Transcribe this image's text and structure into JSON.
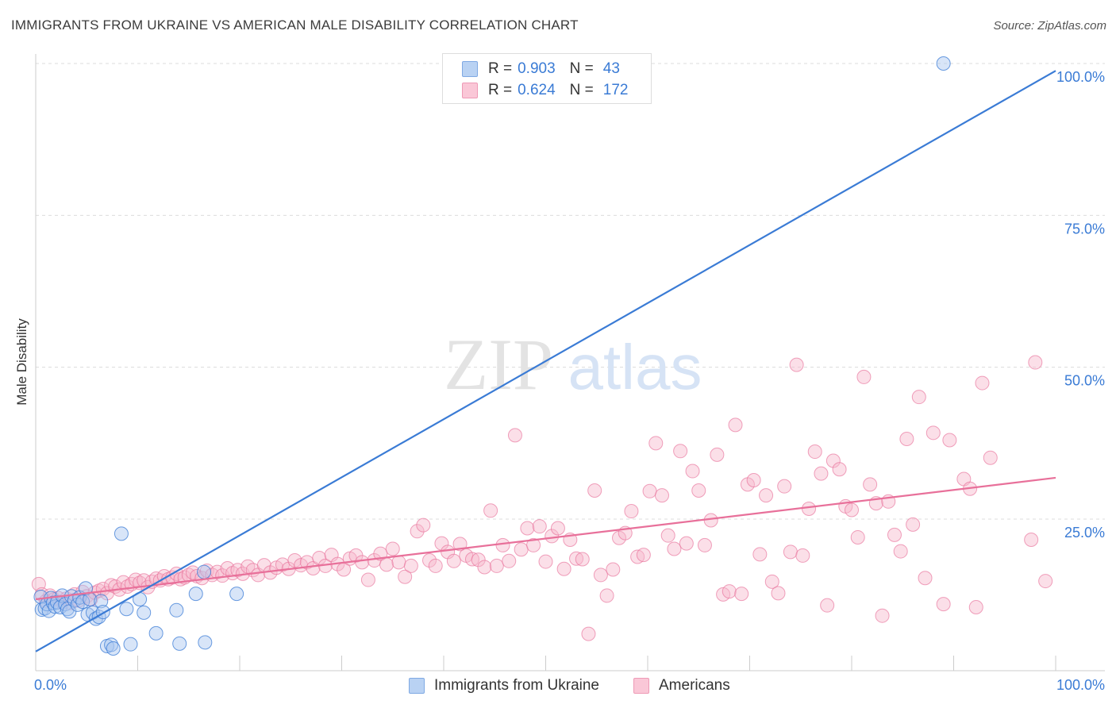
{
  "title": "IMMIGRANTS FROM UKRAINE VS AMERICAN MALE DISABILITY CORRELATION CHART",
  "source": "Source: ZipAtlas.com",
  "watermark": {
    "zip": "ZIP",
    "atlas": "atlas"
  },
  "colors": {
    "blue": "#3a7bd5",
    "blue_fill": "#a9c6f0",
    "pink": "#e8709a",
    "pink_fill": "#f7b9cd",
    "axis_text": "#3a7bd5",
    "grid": "#dcdcdc"
  },
  "legend": {
    "rows": [
      {
        "r_label": "R =",
        "r_value": "0.903",
        "n_label": "N =",
        "n_value": "43"
      },
      {
        "r_label": "R =",
        "r_value": "0.624",
        "n_label": "N =",
        "n_value": "172"
      }
    ]
  },
  "bottom_legend": {
    "series1": "Immigrants from Ukraine",
    "series2": "Americans"
  },
  "chart_data": {
    "type": "scatter",
    "title": "IMMIGRANTS FROM UKRAINE VS AMERICAN MALE DISABILITY CORRELATION CHART",
    "ylabel": "Male Disability",
    "xlabel": "",
    "xlim": [
      0,
      100
    ],
    "ylim": [
      0,
      102
    ],
    "x_tick_labels": {
      "left": "0.0%",
      "right": "100.0%"
    },
    "y_ticks": [
      {
        "value": 25,
        "label": "25.0%"
      },
      {
        "value": 50,
        "label": "50.0%"
      },
      {
        "value": 75,
        "label": "75.0%"
      },
      {
        "value": 100,
        "label": "100.0%"
      }
    ],
    "series": [
      {
        "name": "Immigrants from Ukraine",
        "color": "#3a7bd5",
        "R": 0.903,
        "N": 43,
        "trend": {
          "x": [
            0,
            100
          ],
          "y": [
            3.2,
            98.8
          ]
        },
        "points": [
          [
            0.5,
            12.2
          ],
          [
            0.6,
            10.1
          ],
          [
            0.9,
            10.3
          ],
          [
            1.1,
            11.0
          ],
          [
            1.3,
            9.9
          ],
          [
            1.5,
            12.0
          ],
          [
            1.7,
            11.2
          ],
          [
            1.9,
            10.6
          ],
          [
            2.1,
            11.3
          ],
          [
            2.4,
            10.5
          ],
          [
            2.6,
            12.4
          ],
          [
            2.9,
            11.0
          ],
          [
            3.1,
            10.2
          ],
          [
            3.3,
            9.8
          ],
          [
            3.5,
            12.3
          ],
          [
            3.8,
            11.6
          ],
          [
            4.1,
            10.9
          ],
          [
            4.3,
            12.1
          ],
          [
            4.6,
            11.4
          ],
          [
            4.9,
            13.6
          ],
          [
            5.1,
            9.3
          ],
          [
            5.3,
            11.8
          ],
          [
            5.6,
            9.6
          ],
          [
            5.9,
            8.6
          ],
          [
            6.2,
            8.9
          ],
          [
            6.4,
            11.5
          ],
          [
            6.6,
            9.7
          ],
          [
            7.0,
            4.1
          ],
          [
            7.4,
            4.3
          ],
          [
            7.6,
            3.7
          ],
          [
            8.4,
            22.6
          ],
          [
            8.9,
            10.2
          ],
          [
            9.3,
            4.4
          ],
          [
            10.2,
            11.8
          ],
          [
            10.6,
            9.6
          ],
          [
            11.8,
            6.2
          ],
          [
            13.8,
            10.0
          ],
          [
            14.1,
            4.5
          ],
          [
            15.7,
            12.7
          ],
          [
            16.5,
            16.3
          ],
          [
            16.6,
            4.7
          ],
          [
            19.7,
            12.7
          ],
          [
            89.0,
            100.0
          ]
        ]
      },
      {
        "name": "Americans",
        "color": "#e8709a",
        "R": 0.624,
        "N": 172,
        "trend": {
          "x": [
            0,
            100
          ],
          "y": [
            11.8,
            31.8
          ]
        },
        "points": [
          [
            0.3,
            14.3
          ],
          [
            0.6,
            12.6
          ],
          [
            1.0,
            11.5
          ],
          [
            1.4,
            12.4
          ],
          [
            1.8,
            11.8
          ],
          [
            2.2,
            12.0
          ],
          [
            2.6,
            11.3
          ],
          [
            3.0,
            11.9
          ],
          [
            3.4,
            11.2
          ],
          [
            3.8,
            12.6
          ],
          [
            4.2,
            11.6
          ],
          [
            4.6,
            13.0
          ],
          [
            5.0,
            12.3
          ],
          [
            5.4,
            11.8
          ],
          [
            5.8,
            12.9
          ],
          [
            6.2,
            13.2
          ],
          [
            6.6,
            13.5
          ],
          [
            7.0,
            12.8
          ],
          [
            7.4,
            14.1
          ],
          [
            7.8,
            13.9
          ],
          [
            8.2,
            13.4
          ],
          [
            8.6,
            14.6
          ],
          [
            9.0,
            13.9
          ],
          [
            9.4,
            14.3
          ],
          [
            9.8,
            15.0
          ],
          [
            10.2,
            14.5
          ],
          [
            10.6,
            14.9
          ],
          [
            11.0,
            13.8
          ],
          [
            11.4,
            14.7
          ],
          [
            11.8,
            15.2
          ],
          [
            12.2,
            14.9
          ],
          [
            12.6,
            15.6
          ],
          [
            13.0,
            15.1
          ],
          [
            13.4,
            15.4
          ],
          [
            13.8,
            16.0
          ],
          [
            14.2,
            15.1
          ],
          [
            14.6,
            15.4
          ],
          [
            15.0,
            15.8
          ],
          [
            15.4,
            16.2
          ],
          [
            15.8,
            15.6
          ],
          [
            16.3,
            15.3
          ],
          [
            16.8,
            16.5
          ],
          [
            17.3,
            15.8
          ],
          [
            17.8,
            16.3
          ],
          [
            18.3,
            15.7
          ],
          [
            18.8,
            16.9
          ],
          [
            19.3,
            16.1
          ],
          [
            19.8,
            16.6
          ],
          [
            20.3,
            16.0
          ],
          [
            20.8,
            17.2
          ],
          [
            21.3,
            16.6
          ],
          [
            21.8,
            15.8
          ],
          [
            22.4,
            17.4
          ],
          [
            23.0,
            16.2
          ],
          [
            23.6,
            17.0
          ],
          [
            24.2,
            17.5
          ],
          [
            24.8,
            16.8
          ],
          [
            25.4,
            18.2
          ],
          [
            26.0,
            17.4
          ],
          [
            26.6,
            17.9
          ],
          [
            27.2,
            16.9
          ],
          [
            27.8,
            18.6
          ],
          [
            28.4,
            17.3
          ],
          [
            29.0,
            19.1
          ],
          [
            29.6,
            17.6
          ],
          [
            30.2,
            16.7
          ],
          [
            30.8,
            18.5
          ],
          [
            31.4,
            19.0
          ],
          [
            32.0,
            17.9
          ],
          [
            32.6,
            15.0
          ],
          [
            33.2,
            18.2
          ],
          [
            33.8,
            19.3
          ],
          [
            34.4,
            17.5
          ],
          [
            35.0,
            20.1
          ],
          [
            35.6,
            17.9
          ],
          [
            36.2,
            15.5
          ],
          [
            36.8,
            17.3
          ],
          [
            37.4,
            23.0
          ],
          [
            38.0,
            24.0
          ],
          [
            38.6,
            18.2
          ],
          [
            39.2,
            17.3
          ],
          [
            39.8,
            21.0
          ],
          [
            40.4,
            19.6
          ],
          [
            41.0,
            18.1
          ],
          [
            41.6,
            20.9
          ],
          [
            42.2,
            19.0
          ],
          [
            42.8,
            18.4
          ],
          [
            43.4,
            18.3
          ],
          [
            44.0,
            17.1
          ],
          [
            44.6,
            26.4
          ],
          [
            45.2,
            17.3
          ],
          [
            45.8,
            20.7
          ],
          [
            46.4,
            18.1
          ],
          [
            47.0,
            38.8
          ],
          [
            47.6,
            20.0
          ],
          [
            48.2,
            23.5
          ],
          [
            48.8,
            20.7
          ],
          [
            49.4,
            23.8
          ],
          [
            50.0,
            18.0
          ],
          [
            50.6,
            22.2
          ],
          [
            51.2,
            23.5
          ],
          [
            51.8,
            16.8
          ],
          [
            52.4,
            21.6
          ],
          [
            53.0,
            18.5
          ],
          [
            53.6,
            18.4
          ],
          [
            54.2,
            6.1
          ],
          [
            54.8,
            29.7
          ],
          [
            55.4,
            15.8
          ],
          [
            56.0,
            12.4
          ],
          [
            56.6,
            16.7
          ],
          [
            57.2,
            21.9
          ],
          [
            57.8,
            22.7
          ],
          [
            58.4,
            26.3
          ],
          [
            59.0,
            18.8
          ],
          [
            59.6,
            19.1
          ],
          [
            60.2,
            29.6
          ],
          [
            60.8,
            37.5
          ],
          [
            61.4,
            28.9
          ],
          [
            62.0,
            22.3
          ],
          [
            62.6,
            20.1
          ],
          [
            63.2,
            36.2
          ],
          [
            63.8,
            21.0
          ],
          [
            64.4,
            32.9
          ],
          [
            65.0,
            29.7
          ],
          [
            65.6,
            20.7
          ],
          [
            66.2,
            24.8
          ],
          [
            66.8,
            35.6
          ],
          [
            67.4,
            12.6
          ],
          [
            68.0,
            13.1
          ],
          [
            68.6,
            40.5
          ],
          [
            69.2,
            12.7
          ],
          [
            69.8,
            30.7
          ],
          [
            70.4,
            31.4
          ],
          [
            71.0,
            19.2
          ],
          [
            71.6,
            28.9
          ],
          [
            72.2,
            14.7
          ],
          [
            72.8,
            12.8
          ],
          [
            73.4,
            30.4
          ],
          [
            74.0,
            19.6
          ],
          [
            74.6,
            50.4
          ],
          [
            75.2,
            19.0
          ],
          [
            75.8,
            26.7
          ],
          [
            76.4,
            36.1
          ],
          [
            77.0,
            32.5
          ],
          [
            77.6,
            10.8
          ],
          [
            78.2,
            34.6
          ],
          [
            78.8,
            33.2
          ],
          [
            79.4,
            27.1
          ],
          [
            80.0,
            26.5
          ],
          [
            80.6,
            22.0
          ],
          [
            81.2,
            48.4
          ],
          [
            81.8,
            30.7
          ],
          [
            82.4,
            27.6
          ],
          [
            83.0,
            9.1
          ],
          [
            83.6,
            27.9
          ],
          [
            84.2,
            22.4
          ],
          [
            84.8,
            19.7
          ],
          [
            85.4,
            38.2
          ],
          [
            86.0,
            24.1
          ],
          [
            86.6,
            45.1
          ],
          [
            87.2,
            15.3
          ],
          [
            88.0,
            39.2
          ],
          [
            89.0,
            11.0
          ],
          [
            89.6,
            38.0
          ],
          [
            91.0,
            31.6
          ],
          [
            91.6,
            30.0
          ],
          [
            92.2,
            10.5
          ],
          [
            92.8,
            47.4
          ],
          [
            93.6,
            35.1
          ],
          [
            97.6,
            21.6
          ],
          [
            98.0,
            50.8
          ],
          [
            99.0,
            14.8
          ]
        ]
      }
    ]
  }
}
